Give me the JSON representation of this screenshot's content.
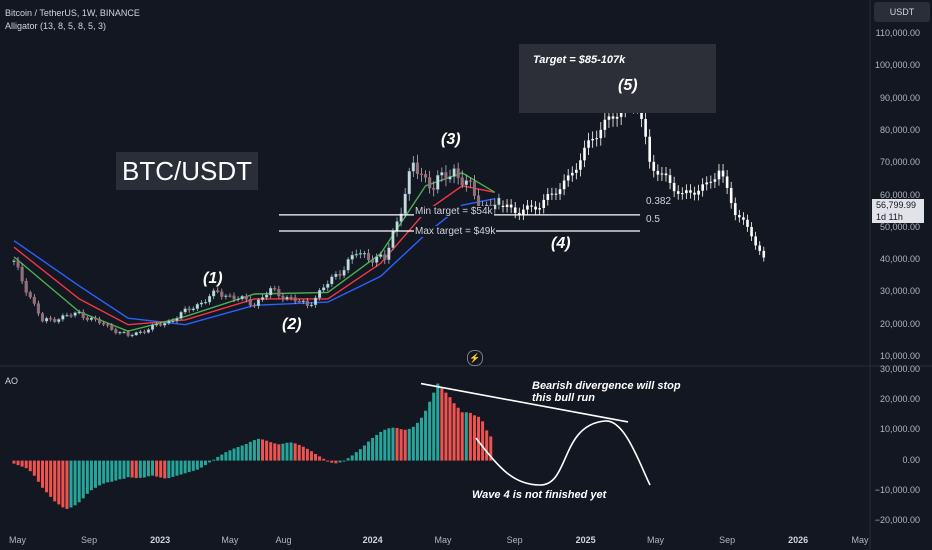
{
  "header": {
    "symbol": "Bitcoin / TetherUS, 1W, BINANCE",
    "indicator": "Alligator (13, 8, 5, 8, 5, 3)"
  },
  "currency_button": "USDT",
  "pair_label": "BTC/USDT",
  "target_label": "Target = $85-107k",
  "waves": [
    "(1)",
    "(2)",
    "(3)",
    "(4)",
    "(5)"
  ],
  "min_target": "Min target = $54k",
  "max_target": "Max target = $49k",
  "fib_levels": [
    "0.382",
    "0.5"
  ],
  "annotations": {
    "divergence": "Bearish divergence will stop this bull run",
    "wave4": "Wave 4 is not finished yet"
  },
  "ao_label": "AO",
  "price_tag": {
    "value": "56,799.99",
    "countdown": "1d 11h"
  },
  "zap_icon": "⚡",
  "colors": {
    "bg": "#131722",
    "up": "#26a69a",
    "down": "#ef5350",
    "blue": "#2962ff",
    "red": "#f23645",
    "green": "#4caf50"
  },
  "chart_data": [
    {
      "type": "candlestick",
      "title": "Bitcoin / TetherUS, 1W, BINANCE",
      "x_ticks": [
        "May",
        "Sep",
        "2023",
        "May",
        "Aug",
        "2024",
        "May",
        "Sep",
        "2025",
        "May",
        "Sep",
        "2026",
        "May"
      ],
      "y_ticks": [
        "110,000.00",
        "100,000.00",
        "90,000.00",
        "80,000.00",
        "70,000.00",
        "60,000.00",
        "50,000.00",
        "40,000.00",
        "30,000.00",
        "20,000.00",
        "10,000.00"
      ],
      "ylim": [
        8000,
        112000
      ],
      "close_points": [
        {
          "x": "2022-04-25",
          "y": 39000
        },
        {
          "x": "2022-06-13",
          "y": 21000
        },
        {
          "x": "2022-08-15",
          "y": 23500
        },
        {
          "x": "2022-11-07",
          "y": 16500
        },
        {
          "x": "2023-01-16",
          "y": 21000
        },
        {
          "x": "2023-04-10",
          "y": 30000
        },
        {
          "x": "2023-06-12",
          "y": 26500
        },
        {
          "x": "2023-07-10",
          "y": 30500
        },
        {
          "x": "2023-09-11",
          "y": 26000
        },
        {
          "x": "2023-10-23",
          "y": 34000
        },
        {
          "x": "2023-12-04",
          "y": 42000
        },
        {
          "x": "2024-01-22",
          "y": 40000
        },
        {
          "x": "2024-03-11",
          "y": 69000
        },
        {
          "x": "2024-04-15",
          "y": 63000
        },
        {
          "x": "2024-05-20",
          "y": 68000
        },
        {
          "x": "2024-07-08",
          "y": 57000
        },
        {
          "x": "2024-08-05",
          "y": 56800
        }
      ],
      "projection_points": [
        {
          "x": "2024-08-05",
          "y": 56800
        },
        {
          "x": "2024-09-09",
          "y": 55000
        },
        {
          "x": "2024-10-14",
          "y": 57000
        },
        {
          "x": "2024-12-02",
          "y": 65000
        },
        {
          "x": "2025-01-13",
          "y": 78000
        },
        {
          "x": "2025-02-24",
          "y": 86000
        },
        {
          "x": "2025-03-31",
          "y": 90000
        },
        {
          "x": "2025-04-21",
          "y": 70000
        },
        {
          "x": "2025-06-16",
          "y": 60000
        },
        {
          "x": "2025-07-28",
          "y": 63000
        },
        {
          "x": "2025-08-18",
          "y": 68000
        },
        {
          "x": "2025-09-15",
          "y": 55000
        },
        {
          "x": "2025-10-13",
          "y": 48000
        },
        {
          "x": "2025-11-03",
          "y": 40000
        }
      ],
      "horizontal_lines": [
        {
          "label": "Min target = $54k",
          "y": 54000,
          "fib": "0.382"
        },
        {
          "label": "Max target = $49k",
          "y": 49000,
          "fib": "0.5"
        }
      ],
      "target_range": [
        85000,
        107000
      ],
      "wave_points": [
        {
          "label": "(1)",
          "x": "2023-04-10",
          "y": 31000
        },
        {
          "label": "(2)",
          "x": "2023-09-11",
          "y": 25500
        },
        {
          "label": "(3)",
          "x": "2024-03-11",
          "y": 73000
        },
        {
          "label": "(4)",
          "x": "2024-10-14",
          "y": 45000
        },
        {
          "label": "(5)",
          "x": "2025-03-31",
          "y": 91000
        }
      ],
      "alligator": {
        "jaw_blue": [
          {
            "x": "2022-04-25",
            "y": 46000
          },
          {
            "x": "2022-08-15",
            "y": 32000
          },
          {
            "x": "2022-11-07",
            "y": 22000
          },
          {
            "x": "2023-02-13",
            "y": 20000
          },
          {
            "x": "2023-06-12",
            "y": 26000
          },
          {
            "x": "2023-10-16",
            "y": 27000
          },
          {
            "x": "2024-01-15",
            "y": 35000
          },
          {
            "x": "2024-04-01",
            "y": 48000
          },
          {
            "x": "2024-06-03",
            "y": 57000
          },
          {
            "x": "2024-07-29",
            "y": 59000
          }
        ],
        "teeth_red": [
          {
            "x": "2022-04-25",
            "y": 44000
          },
          {
            "x": "2022-08-15",
            "y": 28000
          },
          {
            "x": "2022-11-07",
            "y": 20000
          },
          {
            "x": "2023-02-13",
            "y": 21500
          },
          {
            "x": "2023-06-12",
            "y": 28000
          },
          {
            "x": "2023-10-16",
            "y": 28000
          },
          {
            "x": "2024-01-15",
            "y": 39000
          },
          {
            "x": "2024-04-01",
            "y": 55000
          },
          {
            "x": "2024-06-03",
            "y": 63000
          },
          {
            "x": "2024-07-29",
            "y": 61000
          }
        ],
        "lips_green": [
          {
            "x": "2022-04-25",
            "y": 41000
          },
          {
            "x": "2022-08-15",
            "y": 24000
          },
          {
            "x": "2022-11-07",
            "y": 18000
          },
          {
            "x": "2023-02-13",
            "y": 22500
          },
          {
            "x": "2023-06-12",
            "y": 29500
          },
          {
            "x": "2023-10-16",
            "y": 30000
          },
          {
            "x": "2024-01-15",
            "y": 42000
          },
          {
            "x": "2024-04-01",
            "y": 63000
          },
          {
            "x": "2024-06-03",
            "y": 67000
          },
          {
            "x": "2024-07-29",
            "y": 61000
          }
        ]
      }
    },
    {
      "type": "bar",
      "title": "AO",
      "y_ticks": [
        "30,000.00",
        "20,000.00",
        "10,000.00",
        "0.00",
        "−10,000.00",
        "−20,000.00"
      ],
      "ylim": [
        -22000,
        31000
      ],
      "series": [
        {
          "values": [
            -1000,
            -1500,
            -2000,
            -2500,
            -3500,
            -5000,
            -7000,
            -9000,
            -10500,
            -12000,
            -13500,
            -14500,
            -15500,
            -16000,
            -15500,
            -14800,
            -13800,
            -12500,
            -11000,
            -9800,
            -9000,
            -8200,
            -7600,
            -7200,
            -7000,
            -6600,
            -6200,
            -6000,
            -5500,
            -5600,
            -5800,
            -5700,
            -5600,
            -5200,
            -5000,
            -5300,
            -5600,
            -5900,
            -5800,
            -5400,
            -5000,
            -4600,
            -4200,
            -3800,
            -3400,
            -3000,
            -2300,
            -1500,
            -600,
            300,
            1200,
            2000,
            2800,
            3400,
            4000,
            4500,
            5000,
            5500,
            6200,
            6800,
            7200,
            7000,
            6600,
            6100,
            5700,
            5400,
            5600,
            5900,
            6000,
            5700,
            5200,
            4600,
            3900,
            3100,
            2200,
            1400,
            600,
            -200,
            -700,
            -900,
            -600,
            0,
            800,
            1700,
            2800,
            3800,
            5000,
            6300,
            7500,
            8500,
            9500,
            10200,
            10700,
            10900,
            10800,
            10400,
            10200,
            10500,
            11200,
            12500,
            14200,
            16500,
            19500,
            22500,
            25500,
            24000,
            22500,
            21000,
            19000,
            17500,
            16000,
            16000,
            15800,
            15000,
            14500,
            13000,
            10000,
            8000
          ]
        }
      ]
    }
  ]
}
